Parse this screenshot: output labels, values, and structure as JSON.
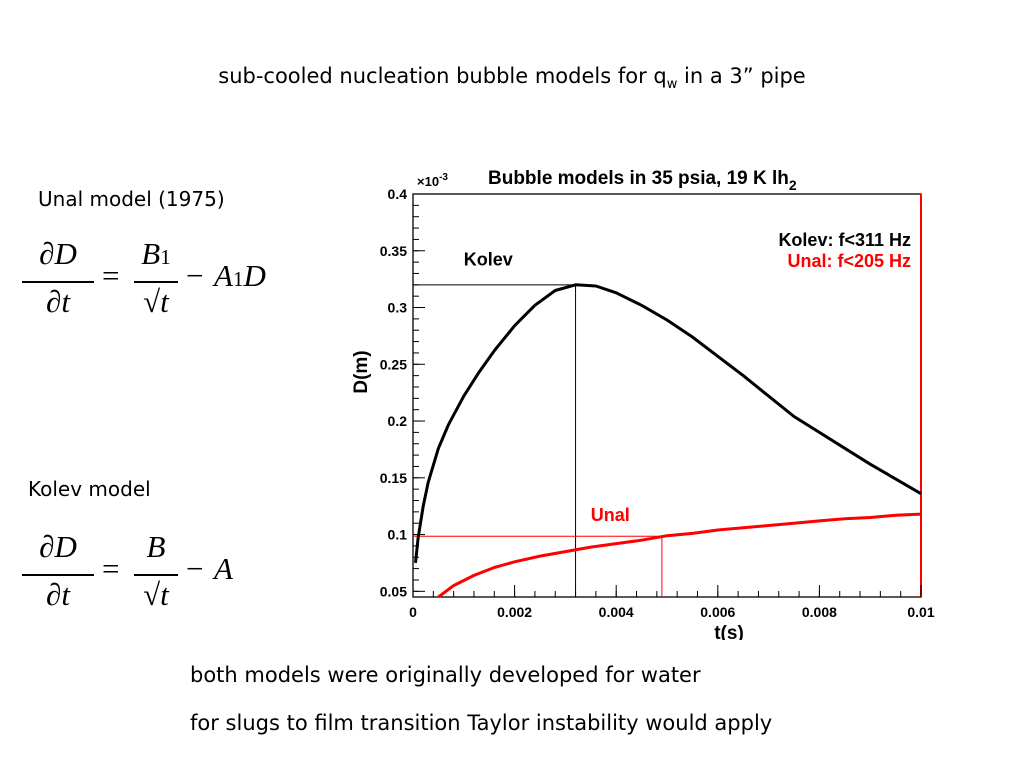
{
  "slide": {
    "title_pre": "sub-cooled nucleation bubble models for q",
    "title_sub": "w",
    "title_post": " in a 3” pipe",
    "unal_title": "Unal model (1975)",
    "kolev_title": "Kolev model",
    "note1": "both models were originally developed for water",
    "note2": "for slugs to film transition Taylor instability would apply"
  },
  "eq_unal": {
    "lhs_num": "∂D",
    "lhs_den": "∂t",
    "equals": "=",
    "rhs_num": "B",
    "rhs_num_sub": "1",
    "rhs_den": "√t",
    "minus": "−",
    "term": "A",
    "term_sub": "1",
    "term_var": "D"
  },
  "eq_kolev": {
    "lhs_num": "∂D",
    "lhs_den": "∂t",
    "equals": "=",
    "rhs_num": "B",
    "rhs_den": "√t",
    "minus": "−",
    "term": "A"
  },
  "chart_data": {
    "type": "line",
    "title": "Bubble models in 35 psia, 19 K lh",
    "title_sub": "2",
    "xlabel": "t(s)",
    "ylabel": "D(m)",
    "y_multiplier": "×10",
    "y_multiplier_exp": "-3",
    "xlim": [
      0,
      0.01
    ],
    "ylim": [
      0.045,
      0.4
    ],
    "x_ticks": [
      0,
      0.002,
      0.004,
      0.006,
      0.008,
      0.01
    ],
    "x_tick_labels": [
      "0",
      "0.002",
      "0.004",
      "0.006",
      "0.008",
      "0.01"
    ],
    "y_ticks": [
      0.05,
      0.1,
      0.15,
      0.2,
      0.25,
      0.3,
      0.35,
      0.4
    ],
    "y_tick_labels": [
      "0.05",
      "0.1",
      "0.15",
      "0.2",
      "0.25",
      "0.3",
      "0.35",
      "0.4"
    ],
    "legend": [
      {
        "text": "Kolev: f<311 Hz",
        "color": "#000000"
      },
      {
        "text": "Unal: f<205 Hz",
        "color": "#ff0000"
      }
    ],
    "legend_position": "top-right",
    "series": [
      {
        "name": "Kolev",
        "color": "#000000",
        "x": [
          5e-05,
          0.0001,
          0.0002,
          0.0003,
          0.0005,
          0.0007,
          0.001,
          0.0013,
          0.0016,
          0.002,
          0.0024,
          0.0028,
          0.0032,
          0.0036,
          0.004,
          0.0045,
          0.005,
          0.0055,
          0.006,
          0.0065,
          0.007,
          0.0075,
          0.008,
          0.0085,
          0.009,
          0.0095,
          0.01
        ],
        "y": [
          0.075,
          0.097,
          0.125,
          0.146,
          0.176,
          0.197,
          0.222,
          0.243,
          0.262,
          0.284,
          0.302,
          0.315,
          0.32,
          0.319,
          0.313,
          0.302,
          0.289,
          0.274,
          0.257,
          0.24,
          0.222,
          0.204,
          0.19,
          0.176,
          0.162,
          0.149,
          0.136
        ]
      },
      {
        "name": "Unal",
        "color": "#ff0000",
        "x": [
          0.0005,
          0.0008,
          0.0012,
          0.0016,
          0.002,
          0.0025,
          0.003,
          0.0035,
          0.004,
          0.0045,
          0.005,
          0.0055,
          0.006,
          0.0065,
          0.007,
          0.0075,
          0.008,
          0.0085,
          0.009,
          0.0095,
          0.01
        ],
        "y": [
          0.045,
          0.055,
          0.064,
          0.071,
          0.076,
          0.081,
          0.085,
          0.089,
          0.092,
          0.095,
          0.099,
          0.101,
          0.104,
          0.106,
          0.108,
          0.11,
          0.112,
          0.114,
          0.115,
          0.117,
          0.118
        ]
      }
    ],
    "annotations": [
      {
        "text": "Kolev",
        "color": "#000000",
        "x": 0.001,
        "y": 0.337
      },
      {
        "text": "Unal",
        "color": "#ff0000",
        "x": 0.0035,
        "y": 0.112
      }
    ],
    "reference_lines": [
      {
        "series": "Kolev",
        "color": "#000000",
        "x": 0.0032,
        "y": 0.32
      },
      {
        "series": "Unal",
        "color": "#ff0000",
        "x": 0.0049,
        "y": 0.0985
      }
    ]
  }
}
